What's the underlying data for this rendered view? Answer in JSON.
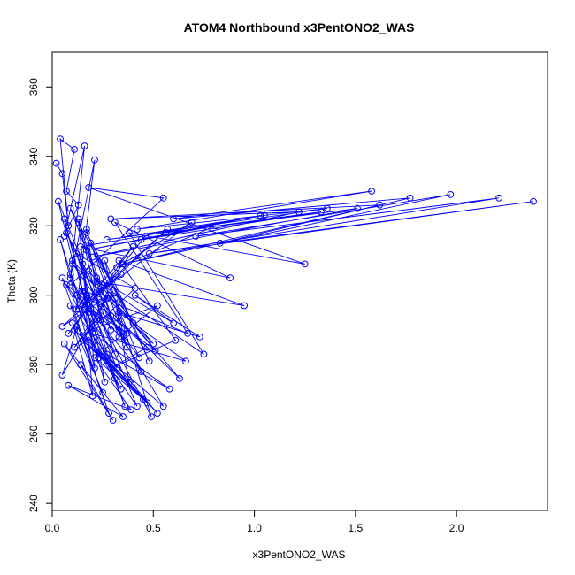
{
  "chart_data": {
    "type": "line",
    "title": "ATOM4 Northbound x3PentONO2_WAS",
    "xlabel": "x3PentONO2_WAS",
    "ylabel": "Theta (K)",
    "xlim": [
      0.0,
      2.45
    ],
    "ylim": [
      238,
      370
    ],
    "xticks": [
      0.0,
      0.5,
      1.0,
      1.5,
      2.0
    ],
    "yticks": [
      240,
      260,
      280,
      300,
      320,
      340,
      360
    ],
    "xtick_labels": [
      "0.0",
      "0.5",
      "1.0",
      "1.5",
      "2.0"
    ],
    "ytick_labels": [
      "240",
      "260",
      "280",
      "300",
      "320",
      "340",
      "360"
    ],
    "color": "#0000ff",
    "markers": "open-circle",
    "series": [
      {
        "x": [
          0.02,
          0.05,
          0.08,
          0.04,
          0.11,
          0.07,
          0.13,
          0.06,
          0.16,
          0.09,
          0.21,
          0.12,
          0.17,
          0.05,
          0.27,
          0.1,
          0.03,
          0.14,
          0.18,
          0.06,
          0.23,
          0.09,
          0.31,
          0.12,
          0.41,
          0.19,
          0.52,
          0.25,
          0.36,
          0.15,
          0.47,
          0.29,
          0.61,
          0.33,
          0.95,
          0.22,
          0.75,
          0.38,
          1.25,
          0.18,
          0.55,
          0.09,
          0.67,
          0.31,
          0.88,
          0.14,
          1.05,
          0.27,
          1.36,
          0.42,
          1.58,
          0.6,
          1.77,
          0.35,
          1.97,
          0.71,
          2.21,
          0.48,
          2.38,
          0.83,
          1.62,
          0.29,
          1.22,
          0.2,
          1.51,
          0.56,
          1.33,
          0.44,
          1.03,
          0.17,
          0.81,
          0.32,
          0.69,
          0.13,
          0.57,
          0.24,
          0.46,
          0.08,
          0.4,
          0.16,
          0.34,
          0.05,
          0.28,
          0.11,
          0.22,
          0.19,
          0.37,
          0.07,
          0.31,
          0.15,
          0.26,
          0.04,
          0.21,
          0.13,
          0.33,
          0.09,
          0.4,
          0.17,
          0.48,
          0.26,
          0.36,
          0.12,
          0.44,
          0.29,
          0.51,
          0.18,
          0.63,
          0.24,
          0.55,
          0.11,
          0.47,
          0.21,
          0.39,
          0.08,
          0.35,
          0.14,
          0.3,
          0.06,
          0.25,
          0.1,
          0.2,
          0.16,
          0.32,
          0.09,
          0.28,
          0.05,
          0.34,
          0.18,
          0.42,
          0.23,
          0.49,
          0.31,
          0.38,
          0.15,
          0.45,
          0.12,
          0.52,
          0.27,
          0.58,
          0.2,
          0.66,
          0.33,
          0.73,
          0.41,
          0.6,
          0.22,
          0.5,
          0.1,
          0.43,
          0.19,
          0.37,
          0.07,
          0.29,
          0.13,
          0.24,
          0.17
        ],
        "y": [
          338,
          335,
          320,
          345,
          342,
          330,
          326,
          317,
          343,
          305,
          339,
          296,
          300,
          277,
          299,
          310,
          327,
          311,
          295,
          322,
          282,
          306,
          276,
          312,
          302,
          290,
          297,
          284,
          268,
          301,
          285,
          279,
          287,
          310,
          297,
          304,
          283,
          318,
          309,
          331,
          328,
          303,
          289,
          321,
          305,
          314,
          323,
          316,
          325,
          319,
          330,
          322,
          328,
          309,
          329,
          317,
          328,
          312,
          327,
          315,
          326,
          322,
          324,
          311,
          325,
          318,
          324,
          316,
          323,
          313,
          320,
          308,
          321,
          296,
          319,
          301,
          317,
          289,
          314,
          298,
          306,
          291,
          300,
          285,
          293,
          296,
          289,
          303,
          283,
          309,
          275,
          316,
          279,
          321,
          288,
          325,
          292,
          318,
          281,
          310,
          287,
          300,
          278,
          294,
          284,
          307,
          276,
          298,
          268,
          290,
          269,
          282,
          267,
          274,
          265,
          280,
          264,
          286,
          272,
          292,
          271,
          301,
          279,
          297,
          266,
          305,
          273,
          288,
          268,
          294,
          265,
          299,
          275,
          287,
          270,
          291,
          266,
          283,
          273,
          289,
          281,
          295,
          288,
          300,
          292,
          305,
          286,
          309,
          282,
          315,
          285,
          318,
          290,
          322,
          293,
          319
        ]
      }
    ]
  }
}
